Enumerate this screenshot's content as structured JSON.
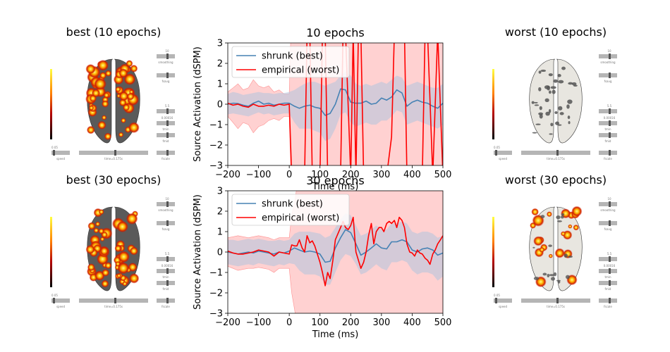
{
  "brains": [
    {
      "title": "best (10 epochs)",
      "style": "hot-dense",
      "labels": {
        "smoothing": "smoothing",
        "fsavg": "fsavg",
        "tmin": "tmin",
        "fmid": "fmid",
        "fscale": "fscale",
        "speed": "speed",
        "time": "time=0.175s",
        "v_top": "10",
        "v_mid": "5.5",
        "v_low": "0.00016",
        "v_speed": "0.05"
      }
    },
    {
      "title": "worst (10 epochs)",
      "style": "gray",
      "labels": {
        "smoothing": "smoothing",
        "fsavg": "fsavg",
        "tmin": "tmin",
        "fmid": "fmid",
        "fscale": "fscale",
        "speed": "speed",
        "time": "time=0.175s",
        "v_top": "10",
        "v_mid": "5.5",
        "v_low": "0.00016",
        "v_speed": "0.05"
      }
    },
    {
      "title": "best (30 epochs)",
      "style": "hot-dense",
      "labels": {
        "smoothing": "smoothing",
        "fsavg": "fsavg",
        "tmin": "tmin",
        "fmid": "fmid",
        "fscale": "fscale",
        "speed": "speed",
        "time": "time=0.175s",
        "v_top": "10",
        "v_mid": "5.5",
        "v_low": "0.00016",
        "v_speed": "0.05"
      }
    },
    {
      "title": "worst (30 epochs)",
      "style": "hot-sparse",
      "labels": {
        "smoothing": "smoothing",
        "fsavg": "fsavg",
        "tmin": "tmin",
        "fmid": "fmid",
        "fscale": "fscale",
        "speed": "speed",
        "time": "time=0.175s",
        "v_top": "10",
        "v_mid": "5.5",
        "v_low": "0.00016",
        "v_speed": "0.05"
      }
    }
  ],
  "colors": {
    "shrunk": "#4682b4",
    "empirical": "#ff0000",
    "shrunk_band": "#b0c4de",
    "empirical_band": "#ffb3b3"
  },
  "chart_data": [
    {
      "type": "line",
      "title": "10 epochs",
      "xlabel": "Time (ms)",
      "ylabel": "Source Activation (dSPM)",
      "xlim": [
        -200,
        500
      ],
      "ylim": [
        -3,
        3
      ],
      "xticks": [
        -200,
        -100,
        0,
        100,
        200,
        300,
        400,
        500
      ],
      "yticks": [
        -3,
        -2,
        -1,
        0,
        1,
        2,
        3
      ],
      "legend_position": "top-left",
      "series": [
        {
          "name": "shrunk (best)",
          "x": [
            -200,
            -183,
            -167,
            -150,
            -133,
            -117,
            -100,
            -83,
            -67,
            -50,
            -33,
            -17,
            0,
            17,
            33,
            50,
            67,
            83,
            100,
            117,
            133,
            150,
            167,
            183,
            200,
            217,
            233,
            250,
            267,
            283,
            300,
            317,
            333,
            350,
            367,
            383,
            400,
            417,
            433,
            450,
            467,
            483,
            500
          ],
          "y": [
            0.0,
            0.05,
            0.03,
            -0.05,
            -0.1,
            0.05,
            0.15,
            0.0,
            0.05,
            -0.05,
            0.0,
            0.05,
            0.05,
            -0.1,
            -0.2,
            -0.1,
            -0.05,
            -0.15,
            -0.2,
            -0.55,
            -0.45,
            0.0,
            0.75,
            0.7,
            0.1,
            0.05,
            0.05,
            0.15,
            0.0,
            0.05,
            0.3,
            0.2,
            0.35,
            0.7,
            0.55,
            -0.1,
            0.1,
            0.2,
            0.1,
            0.05,
            -0.1,
            -0.2,
            0.05
          ],
          "band_upper": [
            0.5,
            0.6,
            0.55,
            0.45,
            0.5,
            0.55,
            0.6,
            0.55,
            0.55,
            0.5,
            0.55,
            0.55,
            0.6,
            0.7,
            0.85,
            1.0,
            1.1,
            1.1,
            1.0,
            0.9,
            1.0,
            1.1,
            1.4,
            1.6,
            1.4,
            1.0,
            0.9,
            1.0,
            0.9,
            1.0,
            1.1,
            1.0,
            1.2,
            1.4,
            1.3,
            0.9,
            1.0,
            1.1,
            1.0,
            0.9,
            0.8,
            0.8,
            1.0
          ],
          "band_lower": [
            -0.5,
            -0.45,
            -0.5,
            -0.55,
            -0.6,
            -0.5,
            -0.4,
            -0.5,
            -0.45,
            -0.55,
            -0.5,
            -0.45,
            -0.45,
            -0.9,
            -1.2,
            -1.2,
            -1.2,
            -1.3,
            -1.4,
            -1.8,
            -1.7,
            -1.2,
            -0.5,
            -0.4,
            -0.9,
            -1.1,
            -1.0,
            -0.9,
            -1.0,
            -1.0,
            -0.8,
            -0.8,
            -0.6,
            -0.3,
            -0.4,
            -1.0,
            -0.9,
            -0.8,
            -0.9,
            -1.0,
            -1.1,
            -1.2,
            -1.0
          ]
        },
        {
          "name": "empirical (worst)",
          "x": [
            -200,
            -183,
            -167,
            -150,
            -133,
            -117,
            -100,
            -83,
            -67,
            -50,
            -33,
            -17,
            0,
            8,
            17,
            33,
            50,
            58,
            67,
            75,
            83,
            100,
            108,
            117,
            125,
            133,
            150,
            167,
            175,
            183,
            200,
            208,
            217,
            225,
            233,
            242,
            250,
            267,
            283,
            300,
            317,
            333,
            342,
            350,
            367,
            375,
            383,
            400,
            417,
            433,
            442,
            450,
            467,
            483,
            500
          ],
          "y": [
            0.05,
            -0.05,
            0.0,
            -0.1,
            -0.15,
            0.0,
            -0.1,
            -0.1,
            -0.05,
            -0.1,
            0.0,
            -0.05,
            0.0,
            -3.5,
            -3.5,
            -3.5,
            -3.5,
            3.5,
            3.5,
            -3.5,
            -3.5,
            -3.5,
            3.5,
            3.5,
            -3.5,
            -3.5,
            -3.5,
            -3.5,
            3.5,
            3.5,
            -3.5,
            3.5,
            -3.5,
            3.5,
            3.5,
            -3.5,
            -3.5,
            -3.5,
            -3.5,
            -3.5,
            -3.5,
            -1.6,
            3.5,
            3.5,
            3.5,
            3.5,
            -3.5,
            -3.5,
            -3.5,
            -3.5,
            3.5,
            3.5,
            -3.5,
            3.5,
            -3.5
          ],
          "band_upper": [
            0.6,
            0.8,
            1.0,
            0.7,
            0.8,
            1.2,
            0.9,
            0.8,
            0.9,
            0.6,
            0.7,
            0.5,
            0.5,
            5,
            5,
            5,
            5,
            5,
            5,
            5,
            5,
            5,
            5,
            5,
            5,
            5,
            5,
            5,
            5,
            5,
            5,
            5,
            5,
            5,
            5,
            5,
            5,
            5,
            5,
            5,
            5,
            5,
            5,
            5,
            5,
            5,
            5,
            5,
            5,
            5,
            5,
            5,
            5,
            5,
            5
          ],
          "band_lower": [
            -0.6,
            -0.9,
            -1.2,
            -0.9,
            -1.0,
            -1.4,
            -1.1,
            -1.0,
            -0.8,
            -0.7,
            -0.8,
            -0.6,
            -0.6,
            -5,
            -5,
            -5,
            -5,
            -5,
            -5,
            -5,
            -5,
            -5,
            -5,
            -5,
            -5,
            -5,
            -5,
            -5,
            -5,
            -5,
            -5,
            -5,
            -5,
            -5,
            -5,
            -5,
            -5,
            -5,
            -5,
            -5,
            -5,
            -5,
            -5,
            -5,
            -5,
            -5,
            -5,
            -5,
            -5,
            -5,
            -5,
            -5,
            -5,
            -5,
            -5
          ]
        }
      ]
    },
    {
      "type": "line",
      "title": "30 epochs",
      "xlabel": "Time (ms)",
      "ylabel": "Source Activation (dSPM)",
      "xlim": [
        -200,
        500
      ],
      "ylim": [
        -3,
        3
      ],
      "xticks": [
        -200,
        -100,
        0,
        100,
        200,
        300,
        400,
        500
      ],
      "yticks": [
        -3,
        -2,
        -1,
        0,
        1,
        2,
        3
      ],
      "legend_position": "top-left",
      "series": [
        {
          "name": "shrunk (best)",
          "x": [
            -200,
            -183,
            -167,
            -150,
            -133,
            -117,
            -100,
            -83,
            -67,
            -50,
            -33,
            -17,
            0,
            17,
            33,
            50,
            67,
            83,
            100,
            117,
            133,
            150,
            167,
            183,
            200,
            217,
            233,
            250,
            267,
            283,
            300,
            317,
            333,
            350,
            367,
            383,
            400,
            417,
            433,
            450,
            467,
            483,
            500
          ],
          "y": [
            0.0,
            -0.05,
            -0.1,
            -0.05,
            0.0,
            -0.05,
            0.05,
            0.0,
            -0.05,
            -0.1,
            0.0,
            -0.05,
            0.05,
            0.2,
            0.1,
            0.0,
            0.05,
            0.0,
            -0.1,
            -0.5,
            -0.45,
            0.2,
            0.7,
            1.1,
            0.95,
            0.4,
            -0.15,
            0.0,
            0.2,
            0.4,
            0.2,
            0.15,
            0.5,
            0.5,
            0.6,
            0.5,
            0.1,
            0.0,
            0.15,
            0.2,
            0.1,
            -0.15,
            -0.05
          ],
          "band_upper": [
            0.6,
            0.6,
            0.55,
            0.6,
            0.65,
            0.6,
            0.65,
            0.6,
            0.55,
            0.55,
            0.6,
            0.55,
            0.6,
            0.9,
            1.0,
            1.0,
            1.0,
            0.95,
            0.9,
            0.7,
            0.8,
            1.2,
            1.6,
            1.9,
            1.8,
            1.3,
            0.8,
            0.9,
            1.1,
            1.3,
            1.1,
            1.1,
            1.4,
            1.4,
            1.5,
            1.4,
            1.0,
            0.9,
            1.0,
            1.0,
            0.9,
            0.7,
            0.8
          ],
          "band_lower": [
            -0.6,
            -0.65,
            -0.7,
            -0.65,
            -0.6,
            -0.65,
            -0.55,
            -0.6,
            -0.65,
            -0.7,
            -0.6,
            -0.65,
            -0.55,
            -0.6,
            -0.9,
            -1.1,
            -1.1,
            -1.1,
            -1.2,
            -1.6,
            -1.6,
            -1.0,
            -0.4,
            -0.1,
            -0.2,
            -0.6,
            -1.1,
            -1.0,
            -0.8,
            -0.6,
            -0.8,
            -0.9,
            -0.5,
            -0.5,
            -0.4,
            -0.5,
            -0.9,
            -1.1,
            -1.0,
            -1.0,
            -1.1,
            -1.4,
            -1.2
          ]
        },
        {
          "name": "empirical (worst)",
          "x": [
            -200,
            -183,
            -167,
            -150,
            -133,
            -117,
            -100,
            -83,
            -67,
            -50,
            -33,
            -17,
            0,
            8,
            17,
            25,
            33,
            42,
            50,
            58,
            67,
            75,
            83,
            100,
            108,
            117,
            125,
            133,
            142,
            150,
            167,
            175,
            183,
            192,
            200,
            208,
            217,
            225,
            233,
            242,
            250,
            258,
            267,
            275,
            283,
            292,
            300,
            308,
            317,
            325,
            333,
            342,
            350,
            358,
            367,
            375,
            383,
            392,
            400,
            408,
            417,
            425,
            433,
            442,
            450,
            458,
            467,
            475,
            483,
            492,
            500
          ],
          "y": [
            0.05,
            -0.05,
            -0.1,
            -0.1,
            -0.05,
            0.0,
            0.1,
            0.05,
            0.0,
            -0.2,
            0.0,
            -0.05,
            -0.1,
            0.35,
            0.3,
            0.3,
            0.6,
            0.2,
            0.0,
            0.8,
            0.45,
            0.55,
            0.3,
            -0.5,
            -1.0,
            -1.65,
            -1.0,
            -1.3,
            -0.4,
            0.6,
            1.2,
            1.5,
            1.2,
            1.1,
            1.3,
            1.7,
            0.0,
            -0.4,
            -0.8,
            -0.5,
            0.0,
            0.8,
            1.4,
            0.4,
            1.0,
            1.2,
            1.2,
            1.0,
            1.4,
            1.5,
            1.4,
            1.55,
            1.2,
            1.7,
            1.55,
            1.2,
            0.4,
            0.0,
            -0.05,
            -0.2,
            0.1,
            -0.05,
            -0.1,
            -0.3,
            -0.4,
            -0.6,
            -0.1,
            0.1,
            0.4,
            0.6,
            0.8
          ],
          "band_upper": [
            0.7,
            0.75,
            0.8,
            0.75,
            0.7,
            0.75,
            0.8,
            0.75,
            0.7,
            0.6,
            0.7,
            0.7,
            0.7,
            1.8,
            2.4,
            3.2,
            4.0,
            4.5,
            4.8,
            5,
            5,
            5,
            5,
            5,
            5,
            5,
            5,
            5,
            5,
            5,
            5,
            5,
            5,
            5,
            5,
            5,
            5,
            5,
            5,
            5,
            5,
            5,
            5,
            5,
            5,
            5,
            5,
            5,
            5,
            5,
            5,
            5,
            5,
            5,
            5,
            5,
            5,
            5,
            5,
            5,
            5,
            5,
            5,
            5,
            5,
            5,
            5,
            5,
            5,
            5,
            5
          ],
          "band_lower": [
            -0.7,
            -0.8,
            -0.9,
            -0.85,
            -0.8,
            -0.8,
            -0.75,
            -0.8,
            -0.85,
            -1.0,
            -0.8,
            -0.8,
            -0.8,
            -2.0,
            -2.8,
            -3.6,
            -4.2,
            -4.6,
            -5,
            -5,
            -5,
            -5,
            -5,
            -5,
            -5,
            -5,
            -5,
            -5,
            -5,
            -5,
            -5,
            -5,
            -5,
            -5,
            -5,
            -5,
            -5,
            -5,
            -5,
            -5,
            -5,
            -5,
            -5,
            -5,
            -5,
            -5,
            -5,
            -5,
            -5,
            -5,
            -5,
            -5,
            -5,
            -5,
            -5,
            -5,
            -5,
            -5,
            -5,
            -5,
            -5,
            -5,
            -5,
            -5,
            -5,
            -5,
            -5,
            -5,
            -5,
            -5,
            -5
          ]
        }
      ]
    }
  ]
}
